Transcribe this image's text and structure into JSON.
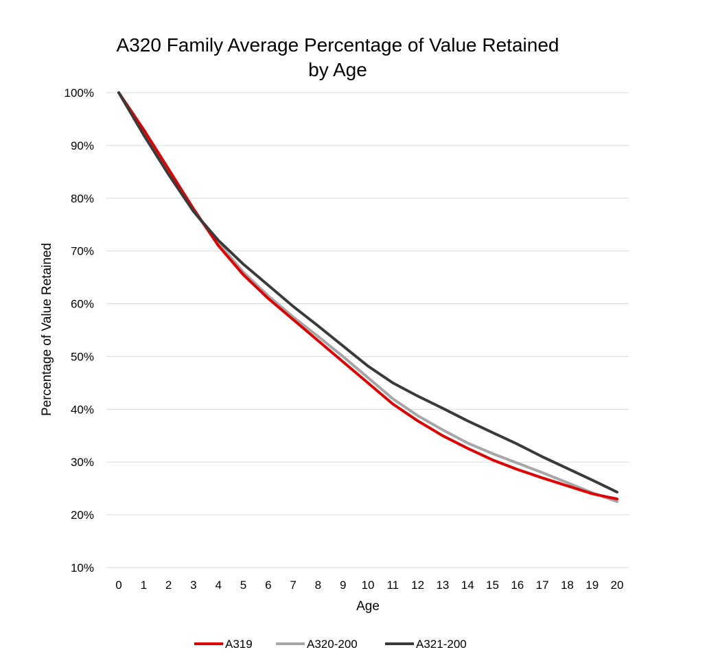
{
  "chart_data": {
    "type": "line",
    "title_lines": [
      "A320 Family Average Percentage of Value Retained",
      "by Age"
    ],
    "xlabel": "Age",
    "ylabel": "Percentage of Value Retained",
    "x": [
      0,
      1,
      2,
      3,
      4,
      5,
      6,
      7,
      8,
      9,
      10,
      11,
      12,
      13,
      14,
      15,
      16,
      17,
      18,
      19,
      20
    ],
    "ylim": [
      10,
      100
    ],
    "yticks": [
      10,
      20,
      30,
      40,
      50,
      60,
      70,
      80,
      90,
      100
    ],
    "ytick_labels": [
      "10%",
      "20%",
      "30%",
      "40%",
      "50%",
      "60%",
      "70%",
      "80%",
      "90%",
      "100%"
    ],
    "grid": true,
    "legend_position": "bottom",
    "series": [
      {
        "name": "A319",
        "color": "#e00000",
        "values": [
          100,
          93,
          85.5,
          78,
          71,
          65.5,
          61,
          57,
          53,
          49,
          45,
          41,
          37.8,
          35,
          32.6,
          30.4,
          28.6,
          27,
          25.5,
          24,
          23
        ]
      },
      {
        "name": "A320-200",
        "color": "#a6a6a6",
        "values": [
          100,
          92,
          84.5,
          77.5,
          71.5,
          66,
          61.5,
          57.5,
          53.8,
          50,
          46,
          42,
          38.8,
          36.1,
          33.6,
          31.6,
          29.8,
          28,
          26.1,
          24.2,
          22.5
        ]
      },
      {
        "name": "A321-200",
        "color": "#3a3a3a",
        "values": [
          100,
          92,
          84.5,
          77.5,
          72,
          67.5,
          63.5,
          59.5,
          55.8,
          52,
          48.2,
          45,
          42.5,
          40.2,
          37.8,
          35.6,
          33.4,
          31,
          28.8,
          26.6,
          24.3
        ]
      }
    ]
  }
}
